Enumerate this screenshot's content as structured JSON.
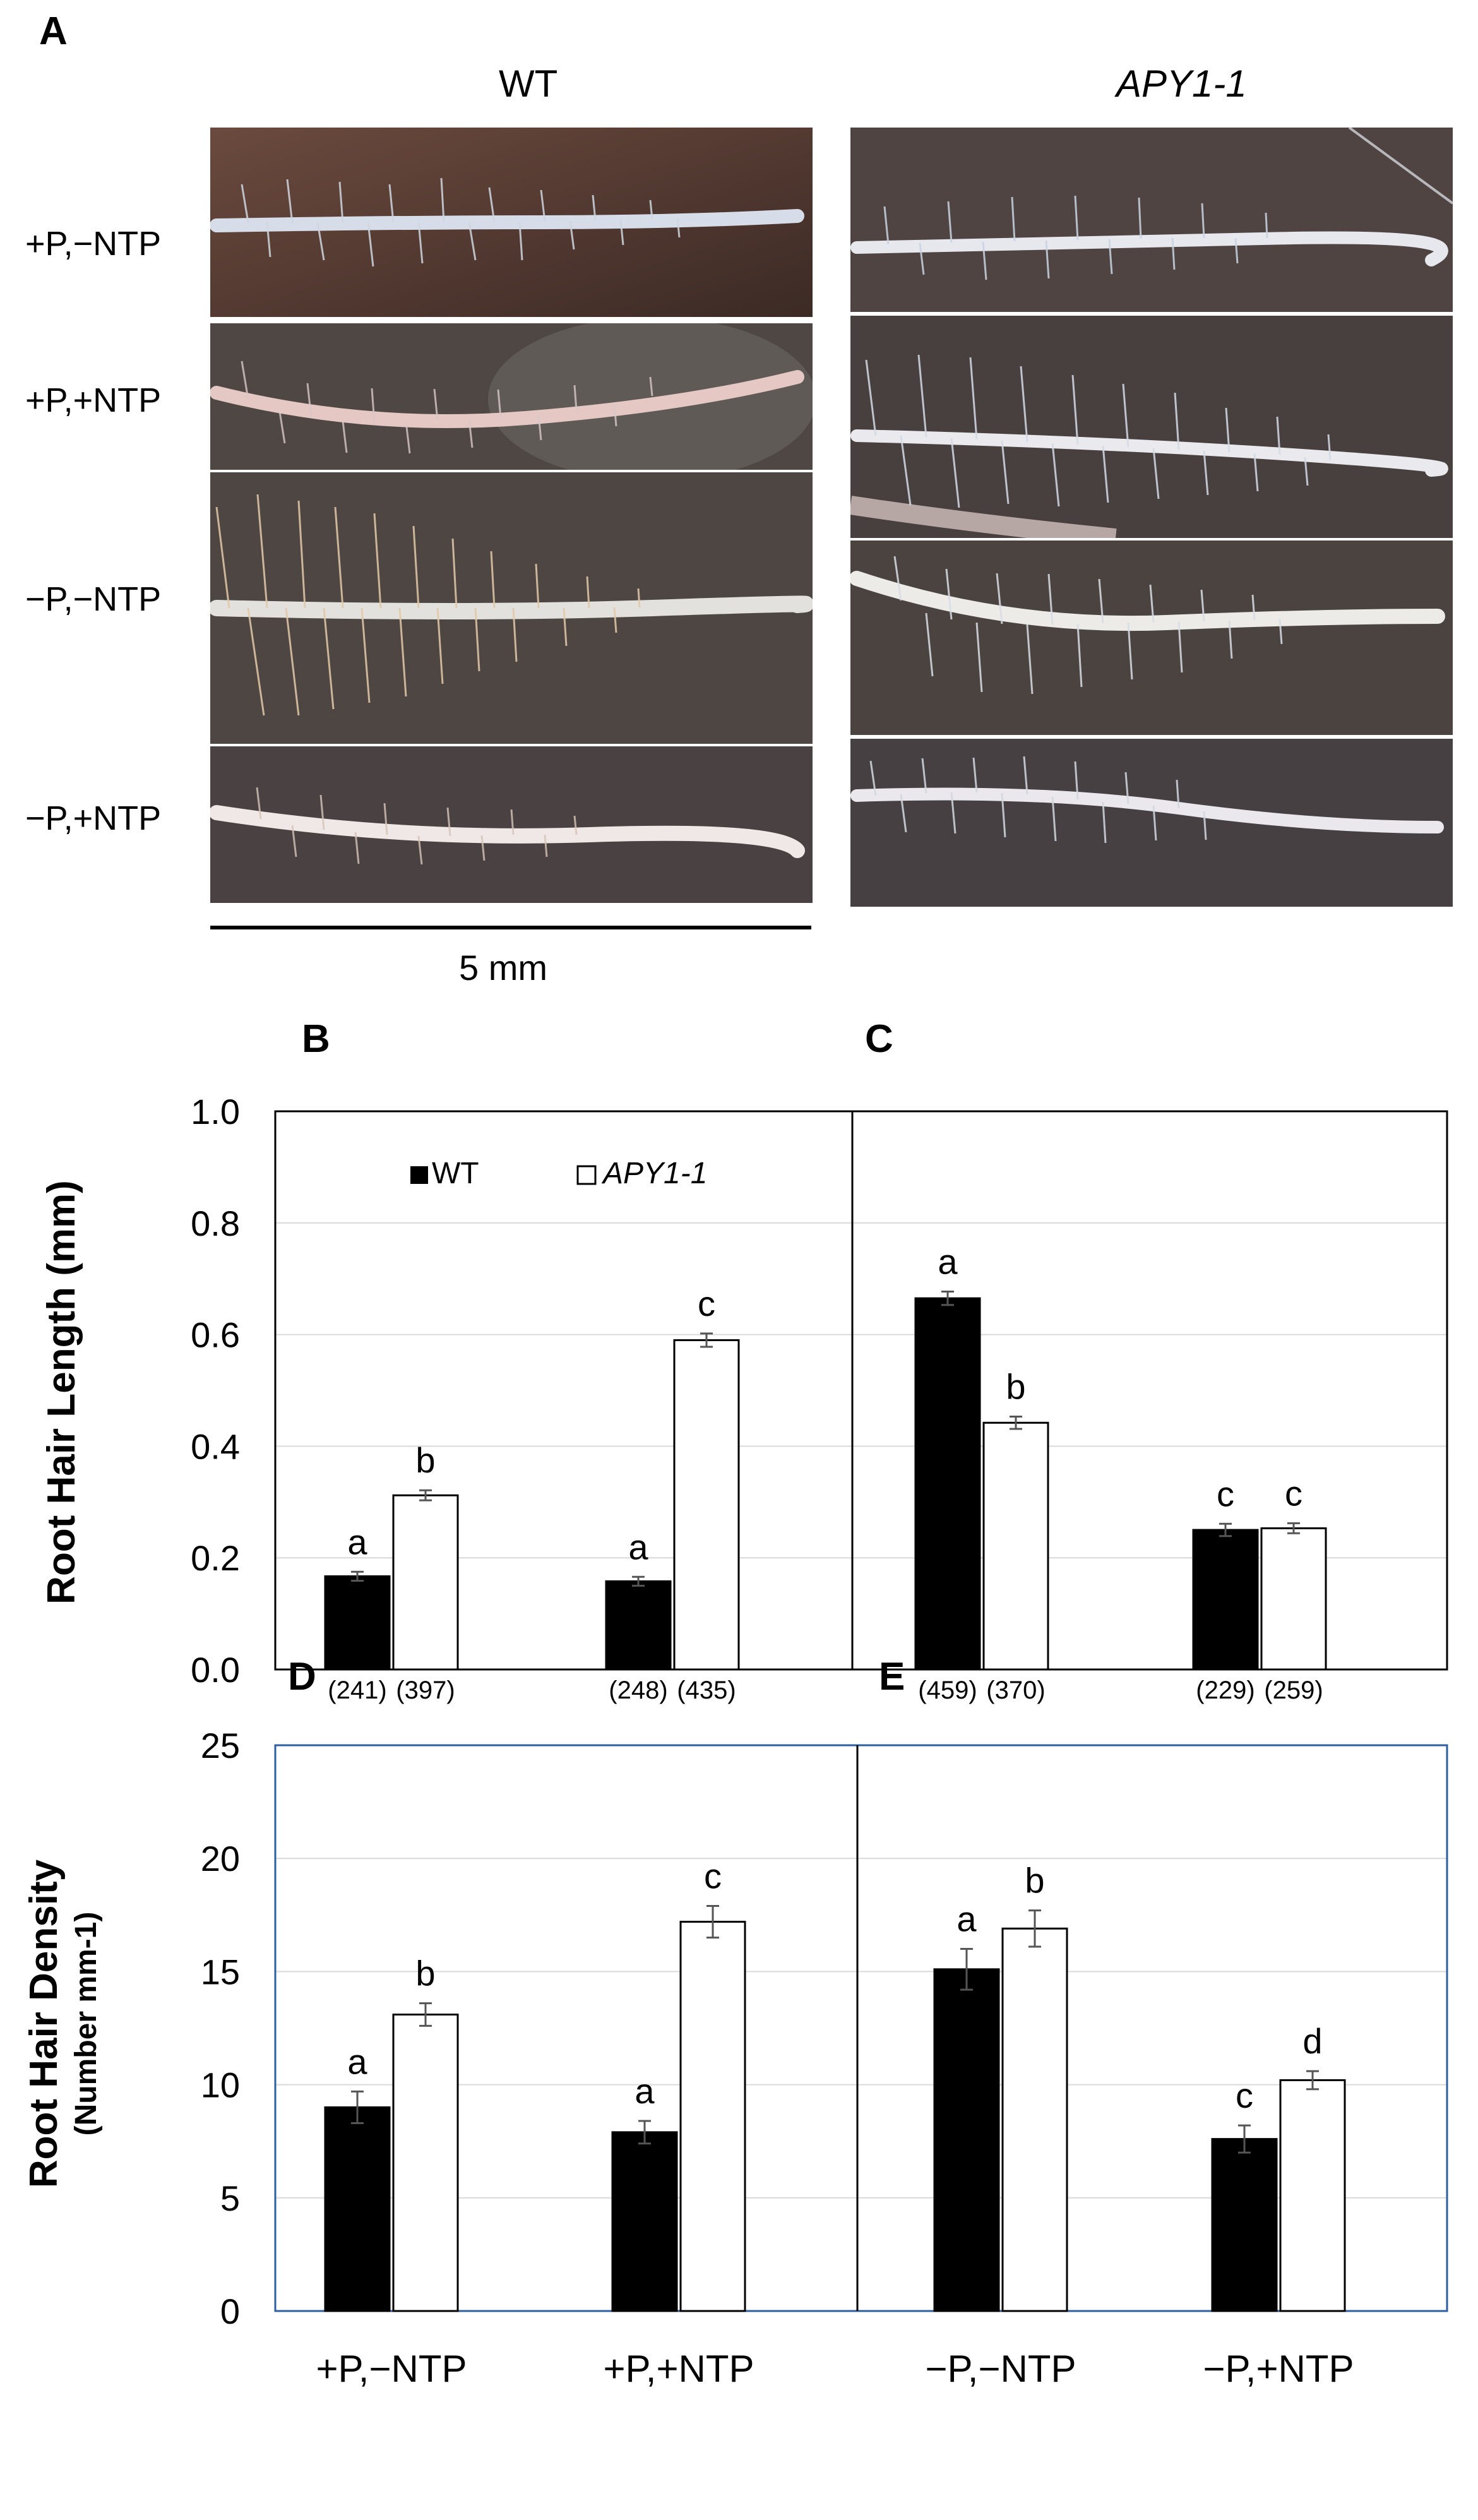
{
  "panel_labels": {
    "A": "A",
    "B": "B",
    "C": "C",
    "D": "D",
    "E": "E"
  },
  "photo_panel": {
    "columns": [
      "WT",
      "APY1-1"
    ],
    "rows": [
      "+P,−NTP",
      "+P,+NTP",
      "−P,−NTP",
      "−P,+NTP"
    ],
    "scale_bar_label": "5 mm"
  },
  "colors": {
    "wt_bar": "#000000",
    "apy_bar": "#ffffff",
    "grid": "#d9d9d9",
    "frame_blue": "#2e5fa0"
  },
  "chart_data": [
    {
      "type": "bar",
      "panels": [
        "B",
        "C"
      ],
      "categories": [
        "+P,−NTP",
        "+P,+NTP",
        "−P,−NTP",
        "−P,+NTP"
      ],
      "series": [
        {
          "name": "WT",
          "values": [
            0.167,
            0.158,
            0.665,
            0.25
          ],
          "errors": [
            0.008,
            0.008,
            0.012,
            0.011
          ],
          "letters": [
            "a",
            "a",
            "a",
            "c"
          ],
          "n": [
            "(241)",
            "(248)",
            "(459)",
            "(229)"
          ]
        },
        {
          "name": "APY1-1",
          "values": [
            0.312,
            0.59,
            0.442,
            0.253
          ],
          "errors": [
            0.009,
            0.012,
            0.011,
            0.009
          ],
          "letters": [
            "b",
            "c",
            "b",
            "c"
          ],
          "n": [
            "(397)",
            "(435)",
            "(370)",
            "(259)"
          ]
        }
      ],
      "ylabel": "Root Hair Length (mm)",
      "ylim": [
        0,
        1.0
      ],
      "yticks": [
        "0.0",
        "0.2",
        "0.4",
        "0.6",
        "0.8",
        "1.0"
      ],
      "legend": {
        "position": "top-left",
        "labels": [
          "WT",
          "APY1-1"
        ]
      },
      "grid": true
    },
    {
      "type": "bar",
      "panels": [
        "D",
        "E"
      ],
      "categories": [
        "+P,−NTP",
        "+P,+NTP",
        "−P,−NTP",
        "−P,+NTP"
      ],
      "series": [
        {
          "name": "WT",
          "values": [
            9.0,
            7.9,
            15.1,
            7.6
          ],
          "errors": [
            0.7,
            0.5,
            0.9,
            0.6
          ],
          "letters": [
            "a",
            "a",
            "a",
            "c"
          ]
        },
        {
          "name": "APY1-1",
          "values": [
            13.1,
            17.2,
            16.9,
            10.2
          ],
          "errors": [
            0.5,
            0.7,
            0.8,
            0.4
          ],
          "letters": [
            "b",
            "c",
            "b",
            "d"
          ]
        }
      ],
      "ylabel": "Root Hair Density",
      "ylabel2": "(Number mm-1)",
      "ylim": [
        0,
        25
      ],
      "yticks": [
        "0",
        "5",
        "10",
        "15",
        "20",
        "25"
      ],
      "grid": true
    }
  ]
}
